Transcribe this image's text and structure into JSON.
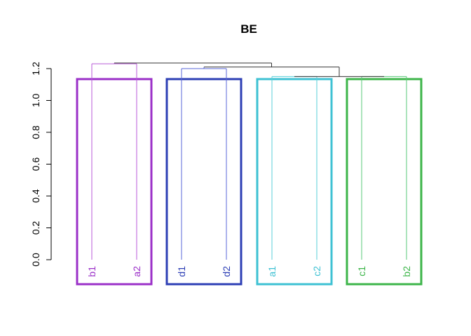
{
  "chart_data": {
    "type": "dendrogram",
    "title": "BE",
    "xlabel": "",
    "ylabel": "",
    "ylim": [
      0,
      1.2
    ],
    "yticks": [
      "0.0",
      "0.2",
      "0.4",
      "0.6",
      "0.8",
      "1.0",
      "1.2"
    ],
    "leaves": [
      "b1",
      "a2",
      "d1",
      "d2",
      "a1",
      "c2",
      "c1",
      "b2"
    ],
    "merges": [
      {
        "left": "b1",
        "right": "a2",
        "height": 1.23
      },
      {
        "left": "d1",
        "right": "d2",
        "height": 1.2
      },
      {
        "left": "a1",
        "right": "c2",
        "height": 1.15
      },
      {
        "left": "c1",
        "right": "b2",
        "height": 1.15
      },
      {
        "left": "a1+c2",
        "right": "c1+b2",
        "height": 1.15
      },
      {
        "left": "d1+d2",
        "right": "a1+c2+c1+b2",
        "height": 1.21
      },
      {
        "left": "b1+a2",
        "right": "d1+d2+a1+c2+c1+b2",
        "height": 1.235
      }
    ],
    "clusters": [
      {
        "leaves": [
          "b1",
          "a2"
        ],
        "color": "#9B30C8",
        "line_color": "#B85AD8"
      },
      {
        "leaves": [
          "d1",
          "d2"
        ],
        "color": "#2D3FB5",
        "line_color": "#5A67D8"
      },
      {
        "leaves": [
          "a1",
          "c2"
        ],
        "color": "#3EC1D3",
        "line_color": "#5ACFD8"
      },
      {
        "leaves": [
          "c1",
          "b2"
        ],
        "color": "#3DB54A",
        "line_color": "#5AC878"
      }
    ],
    "top_line_color": "#333333",
    "grid": false
  }
}
